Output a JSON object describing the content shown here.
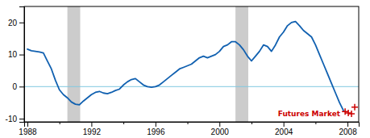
{
  "chart_data": {
    "type": "line",
    "xlim": [
      1987.8,
      2008.7
    ],
    "ylim": [
      -11,
      25
    ],
    "xticks": [
      1988,
      1992,
      1996,
      2000,
      2004,
      2008
    ],
    "xticks_minor": [
      1990,
      1994,
      1998,
      2002,
      2006
    ],
    "yticks": [
      -10,
      0,
      10,
      20
    ],
    "recessions": {
      "color": "#cccccc",
      "ranges": [
        [
          1990.5,
          1991.3
        ],
        [
          2001.0,
          2001.8
        ]
      ]
    },
    "hlines": [
      {
        "value": 0,
        "color": "#80c8e0"
      }
    ],
    "series": [
      {
        "type": "line",
        "color": "#1060b0",
        "x": [
          1988.0,
          1988.25,
          1988.5,
          1988.75,
          1989.0,
          1989.25,
          1989.5,
          1989.75,
          1990.0,
          1990.25,
          1990.5,
          1990.75,
          1991.0,
          1991.25,
          1991.5,
          1991.75,
          1992.0,
          1992.25,
          1992.5,
          1992.75,
          1993.0,
          1993.25,
          1993.5,
          1993.75,
          1994.0,
          1994.25,
          1994.5,
          1994.75,
          1995.0,
          1995.25,
          1995.5,
          1995.75,
          1996.0,
          1996.25,
          1996.5,
          1996.75,
          1997.0,
          1997.25,
          1997.5,
          1997.75,
          1998.0,
          1998.25,
          1998.5,
          1998.75,
          1999.0,
          1999.25,
          1999.5,
          1999.75,
          2000.0,
          2000.25,
          2000.5,
          2000.75,
          2001.0,
          2001.25,
          2001.5,
          2001.75,
          2002.0,
          2002.25,
          2002.5,
          2002.75,
          2003.0,
          2003.25,
          2003.5,
          2003.75,
          2004.0,
          2004.25,
          2004.5,
          2004.75,
          2005.0,
          2005.25,
          2005.5,
          2005.75,
          2006.0,
          2006.25,
          2006.5,
          2006.75,
          2007.0,
          2007.25,
          2007.5,
          2007.75
        ],
        "values": [
          11.7,
          11.2,
          11.0,
          10.8,
          10.5,
          8.0,
          5.5,
          2.0,
          -1.0,
          -2.5,
          -3.5,
          -4.8,
          -5.5,
          -5.7,
          -4.5,
          -3.5,
          -2.5,
          -1.8,
          -1.5,
          -2.0,
          -2.2,
          -1.8,
          -1.2,
          -0.8,
          0.5,
          1.5,
          2.2,
          2.5,
          1.5,
          0.5,
          0.0,
          -0.2,
          0.0,
          0.5,
          1.5,
          2.5,
          3.5,
          4.5,
          5.5,
          6.0,
          6.5,
          7.0,
          8.0,
          9.0,
          9.5,
          9.0,
          9.5,
          10.0,
          11.0,
          12.5,
          13.0,
          14.0,
          14.0,
          13.0,
          11.5,
          9.5,
          8.0,
          9.5,
          11.0,
          13.0,
          12.5,
          11.0,
          13.0,
          15.5,
          17.0,
          19.0,
          20.0,
          20.3,
          19.0,
          17.5,
          16.5,
          15.5,
          13.0,
          10.0,
          7.0,
          4.0,
          1.0,
          -2.0,
          -5.0,
          -7.5
        ]
      },
      {
        "type": "scatter",
        "color": "#cc0000",
        "marker": "plus",
        "x": [
          2007.85,
          2008.05,
          2008.25,
          2008.45
        ],
        "values": [
          -7.8,
          -8.2,
          -8.5,
          -6.4
        ]
      }
    ],
    "annotations": [
      {
        "text": "Futures Market",
        "x": 2007.55,
        "y": -8.5,
        "color": "#cc0000"
      }
    ]
  }
}
